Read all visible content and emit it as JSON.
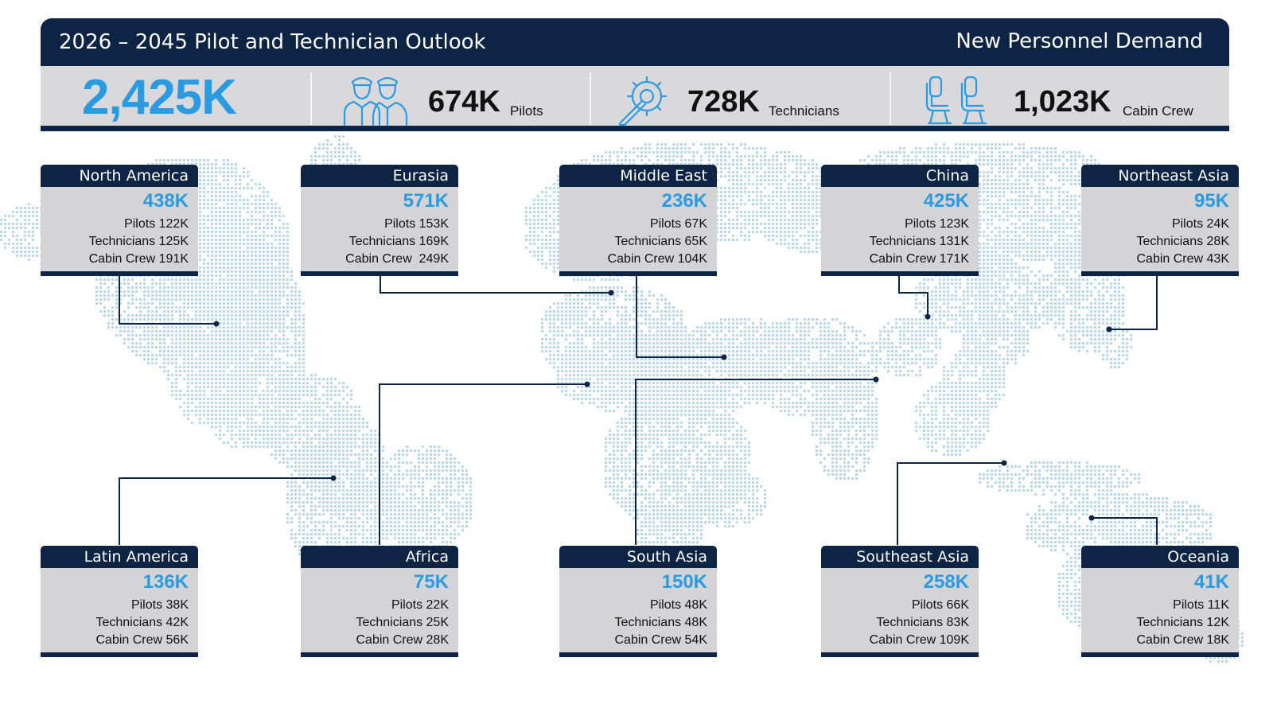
{
  "header": {
    "title": "2026 – 2045 Pilot and Technician Outlook",
    "subtitle": "New Personnel Demand"
  },
  "summary": {
    "total": "2,425K",
    "stats": [
      {
        "icon": "pilots-icon",
        "value": "674K",
        "label": "Pilots"
      },
      {
        "icon": "gear-wrench-icon",
        "value": "728K",
        "label": "Technicians"
      },
      {
        "icon": "seats-icon",
        "value": "1,023K",
        "label": "Cabin Crew"
      }
    ]
  },
  "regions": [
    {
      "name": "North America",
      "total": "438K",
      "pilots": "Pilots 122K",
      "technicians": "Technicians 125K",
      "cabin_crew": "Cabin Crew 191K"
    },
    {
      "name": "Eurasia",
      "total": "571K",
      "pilots": "Pilots 153K",
      "technicians": "Technicians 169K",
      "cabin_crew": "Cabin Crew  249K"
    },
    {
      "name": "Middle East",
      "total": "236K",
      "pilots": "Pilots 67K",
      "technicians": "Technicians 65K",
      "cabin_crew": "Cabin Crew 104K"
    },
    {
      "name": "China",
      "total": "425K",
      "pilots": "Pilots 123K",
      "technicians": "Technicians 131K",
      "cabin_crew": "Cabin Crew 171K"
    },
    {
      "name": "Northeast Asia",
      "total": "95K",
      "pilots": "Pilots 24K",
      "technicians": "Technicians 28K",
      "cabin_crew": "Cabin Crew 43K"
    },
    {
      "name": "Latin America",
      "total": "136K",
      "pilots": "Pilots 38K",
      "technicians": "Technicians 42K",
      "cabin_crew": "Cabin Crew 56K"
    },
    {
      "name": "Africa",
      "total": "75K",
      "pilots": "Pilots 22K",
      "technicians": "Technicians 25K",
      "cabin_crew": "Cabin Crew 28K"
    },
    {
      "name": "South Asia",
      "total": "150K",
      "pilots": "Pilots 48K",
      "technicians": "Technicians 48K",
      "cabin_crew": "Cabin Crew 54K"
    },
    {
      "name": "Southeast Asia",
      "total": "258K",
      "pilots": "Pilots 66K",
      "technicians": "Technicians 83K",
      "cabin_crew": "Cabin Crew 109K"
    },
    {
      "name": "Oceania",
      "total": "41K",
      "pilots": "Pilots 11K",
      "technicians": "Technicians 12K",
      "cabin_crew": "Cabin Crew 18K"
    }
  ],
  "colors": {
    "navy": "#0e2444",
    "accent_blue": "#2a9be0",
    "panel_gray": "#d4d4d6",
    "map_dots": "#b9d8ec"
  }
}
